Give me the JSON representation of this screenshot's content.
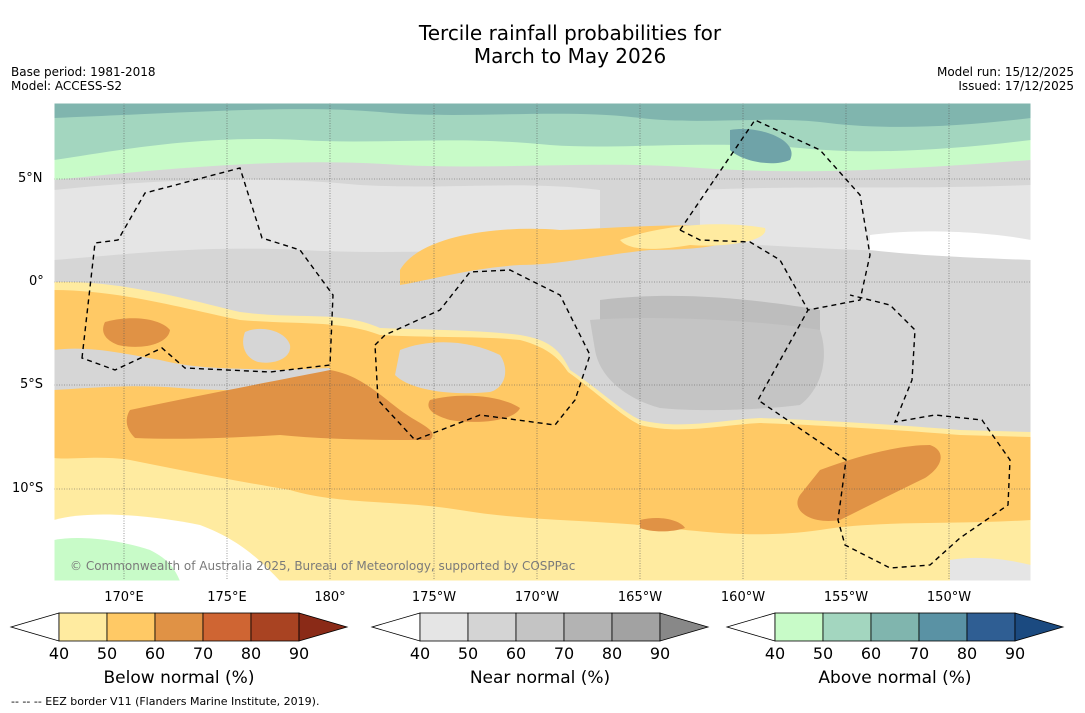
{
  "title_line1": "Tercile rainfall probabilities for",
  "title_line2": "March to May 2026",
  "base_period": "Base period: 1981-2018",
  "model": "Model: ACCESS-S2",
  "model_run": "Model run: 15/12/2025",
  "issued": "Issued: 17/12/2025",
  "lat_labels": [
    "5°N",
    "0°",
    "5°S",
    "10°S"
  ],
  "lon_labels": [
    "170°E",
    "175°E",
    "180°",
    "175°W",
    "170°W",
    "165°W",
    "160°W",
    "155°W",
    "150°W"
  ],
  "copyright": "© Commonwealth of Australia 2025, Bureau of Meteorology, supported by COSPPac",
  "footer": "--  --  -- EEZ border V11 (Flanders Marine Institute, 2019).",
  "colorbars": [
    {
      "title": "Below normal (%)",
      "ticks": [
        "40",
        "50",
        "60",
        "70",
        "80",
        "90"
      ],
      "colors": [
        "#ffeba0",
        "#ffc965",
        "#e09245",
        "#cf6533",
        "#a94322",
        "#8a2a17"
      ]
    },
    {
      "title": "Near normal (%)",
      "ticks": [
        "40",
        "50",
        "60",
        "70",
        "80",
        "90"
      ],
      "colors": [
        "#e5e5e5",
        "#d4d4d4",
        "#c4c4c4",
        "#b3b3b3",
        "#a2a2a2",
        "#888888"
      ]
    },
    {
      "title": "Above normal (%)",
      "ticks": [
        "40",
        "50",
        "60",
        "70",
        "80",
        "90"
      ],
      "colors": [
        "#c8fbc8",
        "#a3d6bf",
        "#80b5ae",
        "#5a92a4",
        "#2f5e93",
        "#1b4a80"
      ]
    }
  ]
}
